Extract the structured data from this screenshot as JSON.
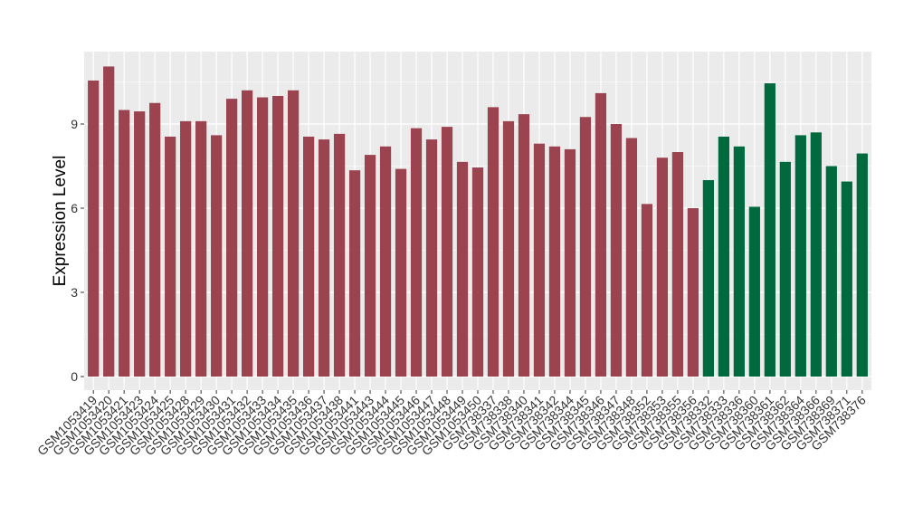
{
  "chart_data": {
    "type": "bar",
    "title": "",
    "xlabel": "",
    "ylabel": "Expression Level",
    "ylim": [
      -0.5,
      11.5
    ],
    "yticks": [
      0,
      3,
      6,
      9
    ],
    "grid": true,
    "legend": "none",
    "colors": {
      "group1": "#9b4450",
      "group2": "#00693e",
      "panel": "#ebebeb",
      "gridline": "#ffffff"
    },
    "categories": [
      "GSM1053419",
      "GSM1053420",
      "GSM1053421",
      "GSM1053423",
      "GSM1053424",
      "GSM1053425",
      "GSM1053428",
      "GSM1053429",
      "GSM1053430",
      "GSM1053431",
      "GSM1053432",
      "GSM1053433",
      "GSM1053434",
      "GSM1053435",
      "GSM1053436",
      "GSM1053437",
      "GSM1053438",
      "GSM1053441",
      "GSM1053443",
      "GSM1053444",
      "GSM1053445",
      "GSM1053446",
      "GSM1053447",
      "GSM1053448",
      "GSM1053449",
      "GSM1053450",
      "GSM738337",
      "GSM738338",
      "GSM738340",
      "GSM738341",
      "GSM738342",
      "GSM738344",
      "GSM738345",
      "GSM738346",
      "GSM738347",
      "GSM738348",
      "GSM738352",
      "GSM738353",
      "GSM738355",
      "GSM738356",
      "GSM738332",
      "GSM738333",
      "GSM738336",
      "GSM738360",
      "GSM738361",
      "GSM738362",
      "GSM738364",
      "GSM738366",
      "GSM738369",
      "GSM738371",
      "GSM738376"
    ],
    "values": [
      10.55,
      11.05,
      9.5,
      9.45,
      9.75,
      8.55,
      9.1,
      9.1,
      8.6,
      9.9,
      10.2,
      9.95,
      10.0,
      10.2,
      8.55,
      8.45,
      8.65,
      7.35,
      7.9,
      8.2,
      7.4,
      8.85,
      8.45,
      8.9,
      7.65,
      7.45,
      9.6,
      9.1,
      9.35,
      8.3,
      8.2,
      8.1,
      9.25,
      10.1,
      9.0,
      8.5,
      6.15,
      7.8,
      8.0,
      6.0,
      7.0,
      8.55,
      8.2,
      6.05,
      10.45,
      7.65,
      8.6,
      8.7,
      7.5,
      6.95,
      7.95
    ],
    "groups": [
      "group1",
      "group1",
      "group1",
      "group1",
      "group1",
      "group1",
      "group1",
      "group1",
      "group1",
      "group1",
      "group1",
      "group1",
      "group1",
      "group1",
      "group1",
      "group1",
      "group1",
      "group1",
      "group1",
      "group1",
      "group1",
      "group1",
      "group1",
      "group1",
      "group1",
      "group1",
      "group1",
      "group1",
      "group1",
      "group1",
      "group1",
      "group1",
      "group1",
      "group1",
      "group1",
      "group1",
      "group1",
      "group1",
      "group1",
      "group1",
      "group2",
      "group2",
      "group2",
      "group2",
      "group2",
      "group2",
      "group2",
      "group2",
      "group2",
      "group2",
      "group2"
    ]
  }
}
